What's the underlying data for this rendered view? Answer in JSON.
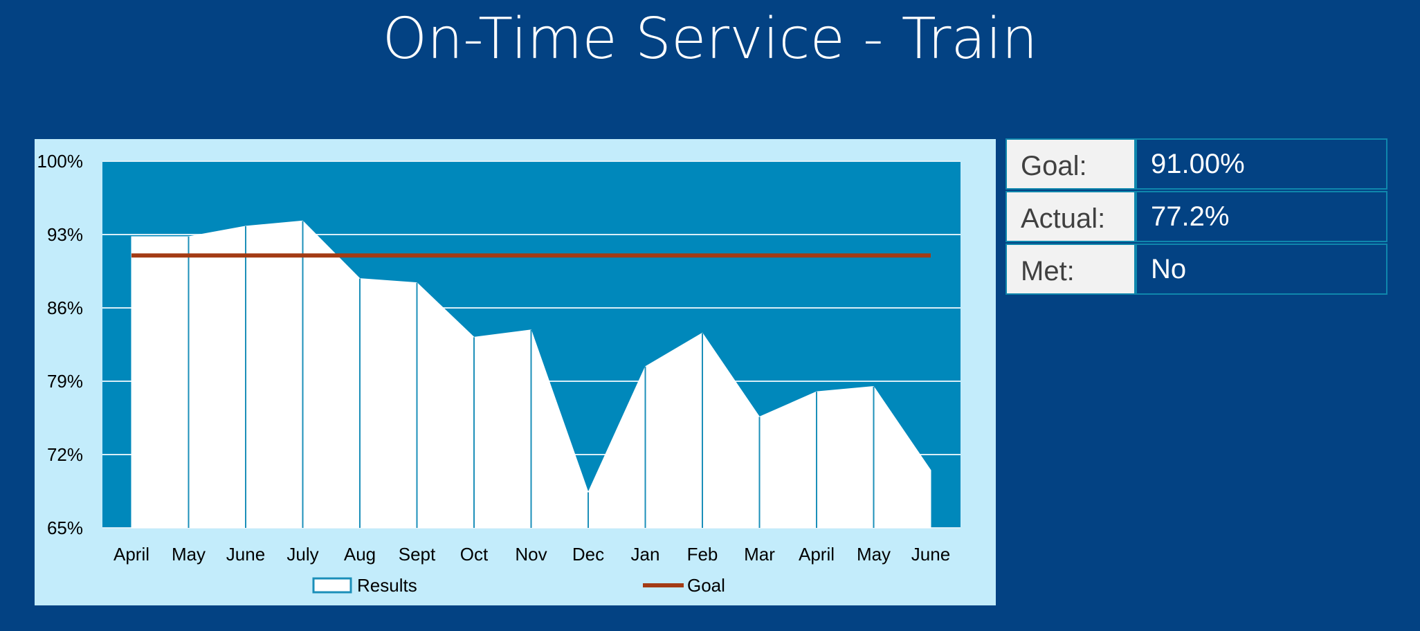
{
  "title": "On-Time Service - Train",
  "stats": {
    "goal_label": "Goal:",
    "goal_value": "91.00%",
    "actual_label": "Actual:",
    "actual_value": "77.2%",
    "met_label": "Met:",
    "met_value": "No"
  },
  "chart_data": {
    "type": "area",
    "categories": [
      "April",
      "May",
      "June",
      "July",
      "Aug",
      "Sept",
      "Oct",
      "Nov",
      "Dec",
      "Jan",
      "Feb",
      "Mar",
      "April",
      "May",
      "June"
    ],
    "series": [
      {
        "name": "Results",
        "type": "area",
        "color": "#ffffff",
        "values": [
          92.8,
          92.8,
          93.8,
          94.3,
          88.8,
          88.4,
          83.2,
          83.9,
          68.4,
          80.4,
          83.6,
          75.6,
          78.0,
          78.5,
          70.5
        ]
      },
      {
        "name": "Goal",
        "type": "line",
        "color": "#a33b14",
        "values": [
          91,
          91,
          91,
          91,
          91,
          91,
          91,
          91,
          91,
          91,
          91,
          91,
          91,
          91,
          91
        ]
      }
    ],
    "ylim": [
      65,
      100
    ],
    "yticks": [
      "100%",
      "93%",
      "86%",
      "79%",
      "72%",
      "65%"
    ],
    "ytick_values": [
      100,
      93,
      86,
      79,
      72,
      65
    ],
    "grid": true,
    "legend": "bottom",
    "plot_background": "#0088bb",
    "panel_background": "#c3ecfb"
  }
}
